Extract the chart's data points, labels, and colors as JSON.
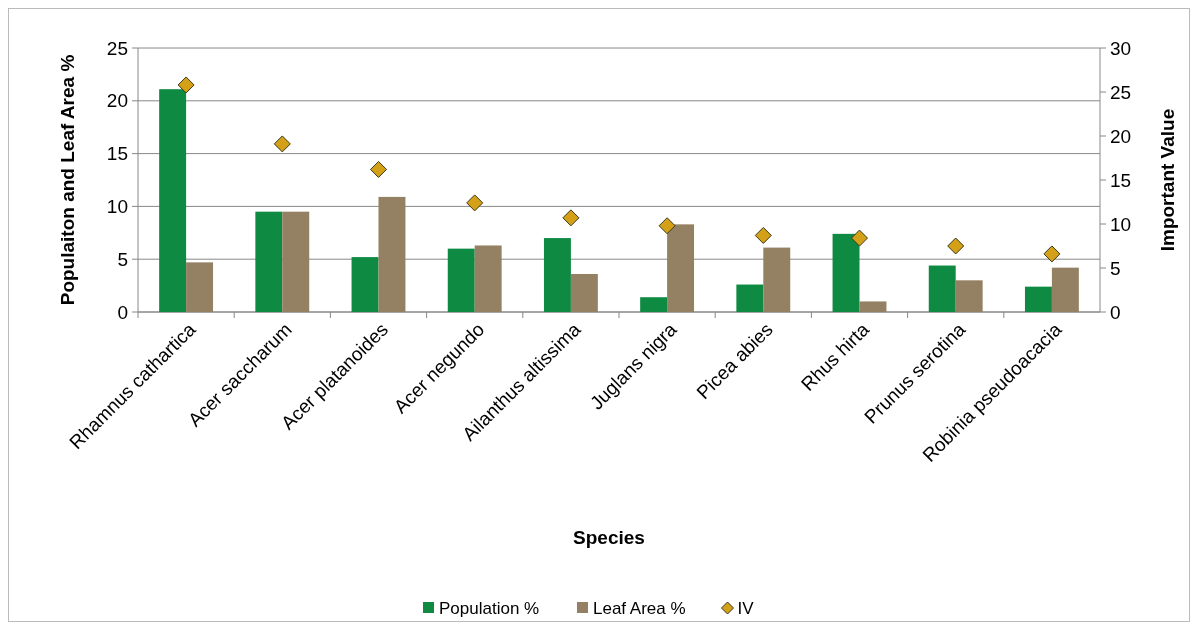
{
  "chart_data": {
    "type": "bar",
    "xlabel": "Species",
    "ylabel": "Populaiton and Leaf Area %",
    "y2label": "Important Value",
    "categories": [
      "Rhamnus cathartica",
      "Acer saccharum",
      "Acer platanoides",
      "Acer negundo",
      "Ailanthus altissima",
      "Juglans nigra",
      "Picea abies",
      "Rhus hirta",
      "Prunus serotina",
      "Robinia pseudoacacia"
    ],
    "series": [
      {
        "name": "Population %",
        "color": "#0e8a43",
        "values": [
          21.1,
          9.5,
          5.2,
          6.0,
          7.0,
          1.4,
          2.6,
          7.4,
          4.4,
          2.4
        ]
      },
      {
        "name": "Leaf Area %",
        "color": "#948063",
        "values": [
          4.7,
          9.5,
          10.9,
          6.3,
          3.6,
          8.3,
          6.1,
          1.0,
          3.0,
          4.2
        ]
      },
      {
        "name": "IV",
        "type": "scatter",
        "axis": "y2",
        "marker": "diamond",
        "color": "#d4a017",
        "x": [
          "Rhamnus cathartica",
          "Acer saccharum",
          "Acer platanoides",
          "Acer negundo",
          "Ailanthus altissima",
          "Juglans nigra",
          "Picea abies",
          "Rhus hirta",
          "Prunus serotina",
          "Robinia pseudoacacia"
        ],
        "values": [
          25.8,
          19.1,
          16.2,
          12.4,
          10.7,
          9.8,
          8.7,
          8.4,
          7.5,
          6.6
        ]
      }
    ],
    "ylim": [
      0,
      25
    ],
    "yticks": [
      0,
      5,
      10,
      15,
      20,
      25
    ],
    "y2lim": [
      0,
      30
    ],
    "y2ticks": [
      0,
      5,
      10,
      15,
      20,
      25,
      30
    ],
    "grid": "y",
    "legend": "bottom"
  }
}
